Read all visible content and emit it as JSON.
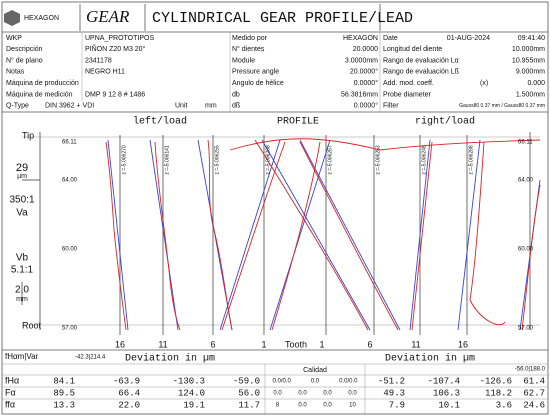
{
  "header": {
    "logo": "HEXAGON",
    "product": "GEAR",
    "title": "CYLINDRICAL GEAR PROFILE/LEAD"
  },
  "info": {
    "rows": [
      [
        "WKP",
        "UPNA_PROTOTIPOS",
        "Medido por",
        "HEXAGON",
        "Date",
        "01-AUG-2024",
        "09:41:40"
      ],
      [
        "Descripción",
        "PIÑON Z20 M3 20°",
        "N° dientes",
        "20.0000",
        "Longitud del diente",
        "10.000mm"
      ],
      [
        "N° de plano",
        "2341178",
        "Module",
        "3.0000mm",
        "Rango de evaluación Lα",
        "10.955mm"
      ],
      [
        "Notas",
        "NEGRO H11",
        "Pressure angle",
        "20.0000°",
        "Rango de evaluación Lß",
        "9.000mm"
      ],
      [
        "Máquina de producción",
        "Angulo de hélice",
        "0.0000°",
        "Add. mod. coeff.",
        "(x)",
        "0.000"
      ],
      [
        "Máquina de medición",
        "DMP 9 12 8 # 1486",
        "db",
        "56.3816mm",
        "Probe diameter",
        "1.500mm"
      ],
      [
        "Q-Type",
        "DIN 3962 + VDI",
        "Unit",
        "mm",
        "dß",
        "0.0000°",
        "Filter",
        "Gauss80 0.37 mm / Gauss80 0.37 mm"
      ]
    ]
  },
  "chart": {
    "labels": {
      "left": "left/load",
      "center": "PROFILE",
      "right": "right/load",
      "tip": "Tip",
      "root": "Root",
      "tooth": "Tooth"
    },
    "scale": {
      "v_amp": "29",
      "v_unit": "µm",
      "va_ratio": "350:1",
      "va": "Va",
      "vb": "Vb",
      "vb_ratio": "5.1:1",
      "h_amp": "2.0",
      "h_unit": "mm"
    },
    "diameters_left": [
      "66.11",
      "64.00",
      "60.00",
      "57.00"
    ],
    "diameters_right": [
      "66.11",
      "64.00",
      "60.00",
      "57.00"
    ],
    "z_left": [
      "z =-5.006270",
      "z =-5.006141",
      "z =-5.006255",
      "z =-5.006268"
    ],
    "z_right": [
      "z =-5.006267",
      "z =-5.006253",
      "z =-5.006248",
      "z =-5.006288"
    ],
    "teeth_left": [
      "16",
      "11",
      "6",
      "1"
    ],
    "teeth_right": [
      "1",
      "6",
      "11",
      "16"
    ]
  },
  "results": {
    "left_summary_label": "fHαm|Var",
    "left_summary": "-42.3|214.4",
    "right_summary": "-56.0|188.0",
    "deviation_left": "Deviation in µm",
    "deviation_right": "Deviation in µm",
    "quality": "Calidad",
    "rows": [
      {
        "name": "fHα",
        "left": [
          "84.1",
          "-63.9",
          "-130.3",
          "-59.0"
        ],
        "quality": [
          "0.0/0.0",
          "0.0",
          "0.0/0.0"
        ],
        "right": [
          "-51.2",
          "-107.4",
          "-126.6",
          "61.4"
        ]
      },
      {
        "name": "Fα",
        "left": [
          "89.5",
          "66.4",
          "124.0",
          "56.0"
        ],
        "quality": [
          "0.0",
          "0.0",
          "0.0",
          "0.0"
        ],
        "right": [
          "49.3",
          "106.3",
          "118.2",
          "62.7"
        ]
      },
      {
        "name": "ffα",
        "left": [
          "13.3",
          "22.0",
          "19.1",
          "11.7"
        ],
        "quality": [
          "8",
          "0.0",
          "0.0",
          "10"
        ],
        "right": [
          "7.9",
          "10.1",
          "3.6",
          "24.6"
        ]
      }
    ]
  }
}
